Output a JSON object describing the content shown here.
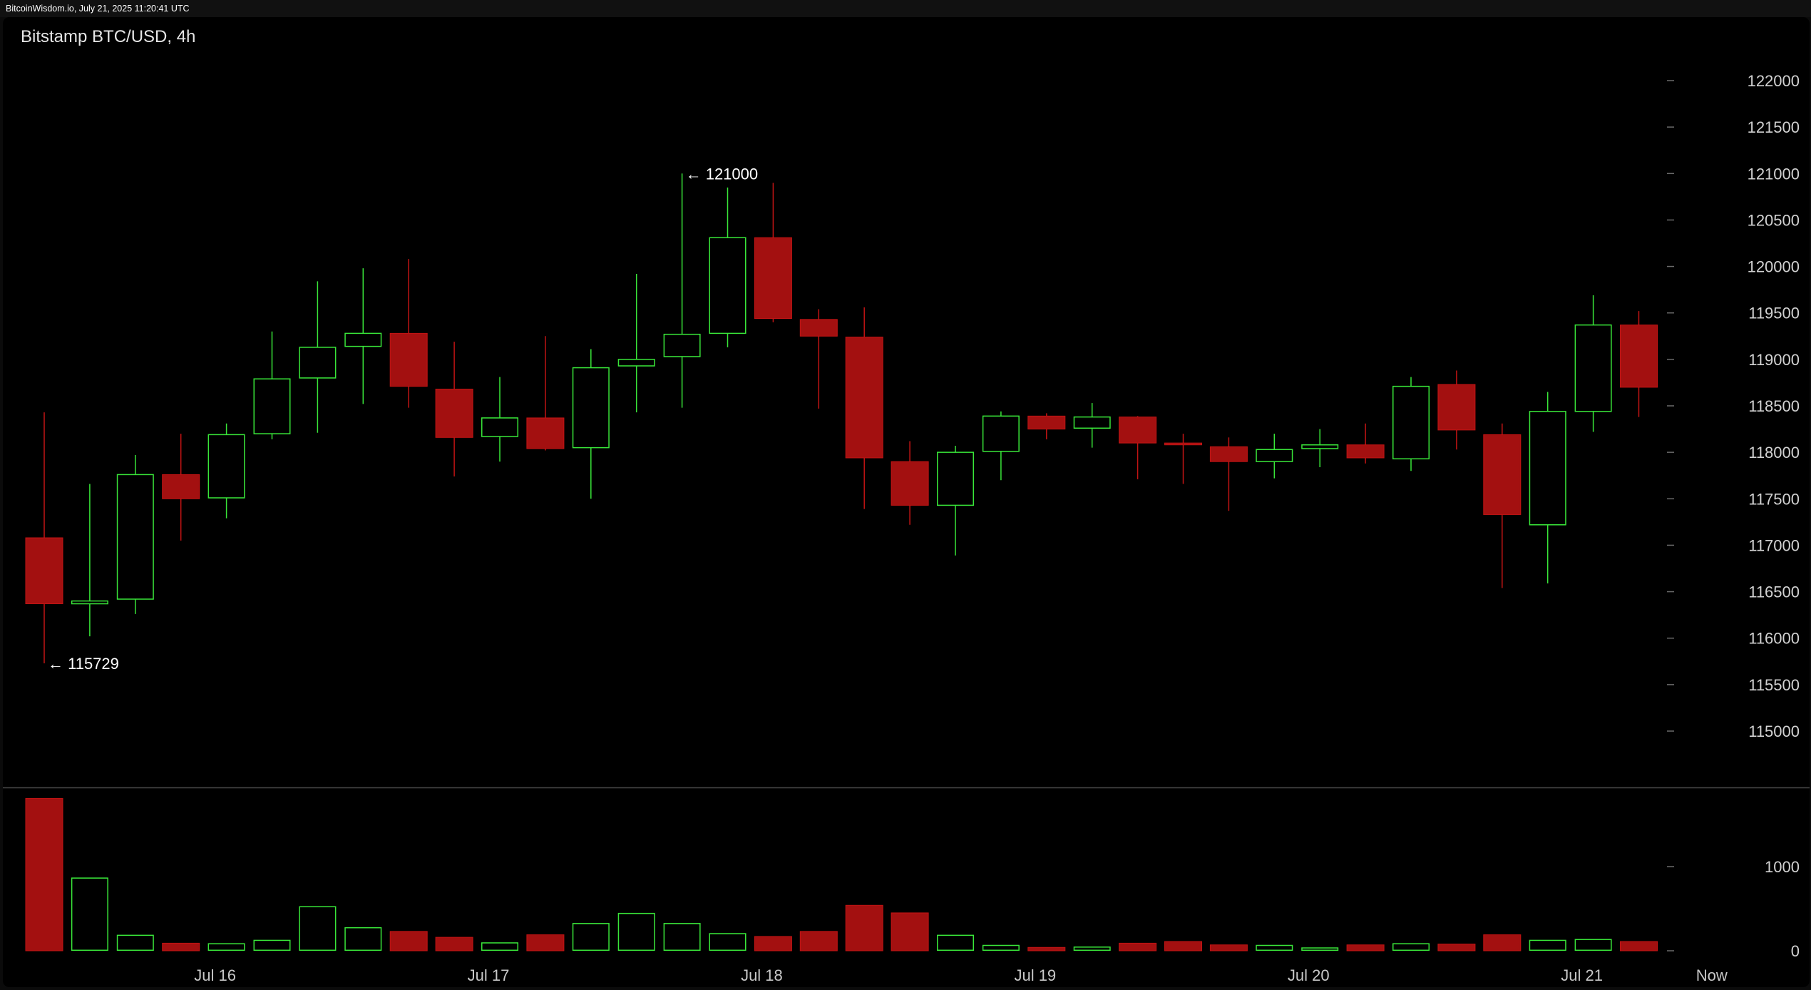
{
  "header": {
    "text": "BitcoinWisdom.io, July 21, 2025 11:20:41 UTC"
  },
  "colors": {
    "up": "#39e639",
    "down": "#a31010",
    "down_stroke": "#c21414",
    "background": "#000000",
    "axis_text": "#d2d2d2",
    "separator": "#4a4a4a"
  },
  "chart_data": {
    "type": "candlestick",
    "title": "Bitstamp BTC/USD, 4h",
    "price_axis": {
      "ticks": [
        115000,
        115500,
        116000,
        116500,
        117000,
        117500,
        118000,
        118500,
        119000,
        119500,
        120000,
        120500,
        121000,
        121500,
        122000
      ],
      "range": [
        114500,
        122500
      ]
    },
    "volume_axis": {
      "ticks": [
        0,
        1000
      ],
      "range": [
        0,
        1800
      ]
    },
    "x_labels": [
      "Jul 16",
      "Jul 17",
      "Jul 18",
      "Jul 19",
      "Jul 20",
      "Jul 21",
      "Now"
    ],
    "x_label_positions": [
      3.75,
      9.75,
      15.75,
      21.75,
      27.75,
      33.75,
      36.6
    ],
    "candles": [
      {
        "o": 117080,
        "h": 118430,
        "l": 115729,
        "c": 116370,
        "v": 1810
      },
      {
        "o": 116370,
        "h": 117660,
        "l": 116020,
        "c": 116400,
        "v": 870
      },
      {
        "o": 116420,
        "h": 117970,
        "l": 116260,
        "c": 117760,
        "v": 190
      },
      {
        "o": 117760,
        "h": 118200,
        "l": 117050,
        "c": 117500,
        "v": 90
      },
      {
        "o": 117510,
        "h": 118310,
        "l": 117290,
        "c": 118190,
        "v": 90
      },
      {
        "o": 118200,
        "h": 119300,
        "l": 118140,
        "c": 118790,
        "v": 130
      },
      {
        "o": 118800,
        "h": 119840,
        "l": 118210,
        "c": 119130,
        "v": 530
      },
      {
        "o": 119140,
        "h": 119980,
        "l": 118520,
        "c": 119280,
        "v": 280
      },
      {
        "o": 119280,
        "h": 120080,
        "l": 118480,
        "c": 118710,
        "v": 230
      },
      {
        "o": 118680,
        "h": 119190,
        "l": 117740,
        "c": 118160,
        "v": 160
      },
      {
        "o": 118170,
        "h": 118810,
        "l": 117900,
        "c": 118370,
        "v": 100
      },
      {
        "o": 118370,
        "h": 119250,
        "l": 118020,
        "c": 118040,
        "v": 190
      },
      {
        "o": 118050,
        "h": 119110,
        "l": 117500,
        "c": 118910,
        "v": 330
      },
      {
        "o": 118930,
        "h": 119920,
        "l": 118430,
        "c": 119000,
        "v": 450
      },
      {
        "o": 119030,
        "h": 121000,
        "l": 118480,
        "c": 119270,
        "v": 330
      },
      {
        "o": 119280,
        "h": 120850,
        "l": 119130,
        "c": 120310,
        "v": 210
      },
      {
        "o": 120310,
        "h": 120900,
        "l": 119400,
        "c": 119440,
        "v": 170
      },
      {
        "o": 119430,
        "h": 119540,
        "l": 118470,
        "c": 119250,
        "v": 230
      },
      {
        "o": 119240,
        "h": 119560,
        "l": 117390,
        "c": 117940,
        "v": 540
      },
      {
        "o": 117900,
        "h": 118120,
        "l": 117220,
        "c": 117430,
        "v": 450
      },
      {
        "o": 117430,
        "h": 118070,
        "l": 116890,
        "c": 118000,
        "v": 190
      },
      {
        "o": 118010,
        "h": 118440,
        "l": 117700,
        "c": 118390,
        "v": 70
      },
      {
        "o": 118390,
        "h": 118420,
        "l": 118140,
        "c": 118250,
        "v": 40
      },
      {
        "o": 118260,
        "h": 118530,
        "l": 118050,
        "c": 118380,
        "v": 50
      },
      {
        "o": 118380,
        "h": 118390,
        "l": 117710,
        "c": 118100,
        "v": 90
      },
      {
        "o": 118100,
        "h": 118200,
        "l": 117660,
        "c": 118080,
        "v": 110
      },
      {
        "o": 118060,
        "h": 118160,
        "l": 117370,
        "c": 117900,
        "v": 70
      },
      {
        "o": 117900,
        "h": 118200,
        "l": 117720,
        "c": 118030,
        "v": 70
      },
      {
        "o": 118040,
        "h": 118250,
        "l": 117840,
        "c": 118080,
        "v": 40
      },
      {
        "o": 118080,
        "h": 118310,
        "l": 117880,
        "c": 117940,
        "v": 70
      },
      {
        "o": 117930,
        "h": 118810,
        "l": 117800,
        "c": 118710,
        "v": 90
      },
      {
        "o": 118730,
        "h": 118880,
        "l": 118030,
        "c": 118240,
        "v": 80
      },
      {
        "o": 118190,
        "h": 118310,
        "l": 116540,
        "c": 117330,
        "v": 190
      },
      {
        "o": 117220,
        "h": 118650,
        "l": 116590,
        "c": 118440,
        "v": 130
      },
      {
        "o": 118440,
        "h": 119690,
        "l": 118220,
        "c": 119370,
        "v": 140
      },
      {
        "o": 119370,
        "h": 119520,
        "l": 118380,
        "c": 118700,
        "v": 110
      }
    ],
    "annotations": [
      {
        "text": "← 121000",
        "candle": 14,
        "price": 121000
      },
      {
        "text": "← 115729",
        "candle": 0,
        "price": 115729
      }
    ]
  }
}
